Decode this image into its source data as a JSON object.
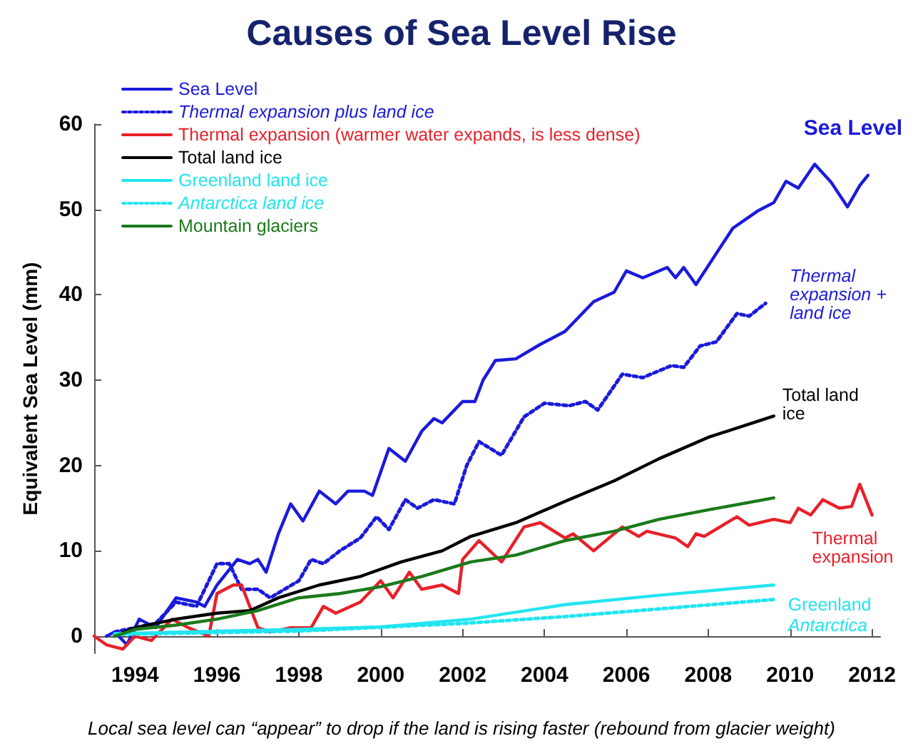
{
  "chart_data": {
    "type": "line",
    "title": "Causes of Sea Level Rise",
    "ylabel": "Equivalent Sea Level (mm)",
    "xlim": [
      1993,
      2012.2
    ],
    "xticks": [
      1994,
      1996,
      1998,
      2000,
      2002,
      2004,
      2006,
      2008,
      2010,
      2012
    ],
    "ylim": [
      -2,
      60
    ],
    "yticks": [
      0,
      10,
      20,
      30,
      40,
      50,
      60
    ],
    "grid": false,
    "legend": "top left",
    "marker": "none",
    "series": [
      {
        "name": "Sea Level",
        "color": "#1a1adb",
        "line_style": "solid",
        "x": [
          1993.3,
          1993.5,
          1993.8,
          1994.1,
          1994.5,
          1995,
          1995.5,
          1995.7,
          1996,
          1996.5,
          1996.8,
          1997,
          1997.2,
          1997.5,
          1997.8,
          1998.1,
          1998.5,
          1998.9,
          1999.2,
          1999.6,
          1999.8,
          2000.2,
          2000.6,
          2001,
          2001.3,
          2001.5,
          2002,
          2002.3,
          2002.5,
          2002.8,
          2003.3,
          2003.9,
          2004.5,
          2005.2,
          2005.7,
          2006,
          2006.4,
          2007,
          2007.2,
          2007.4,
          2007.7,
          2008.6,
          2009.2,
          2009.6,
          2009.9,
          2010.2,
          2010.6,
          2011,
          2011.4,
          2011.7,
          2011.9
        ],
        "values": [
          0,
          0.5,
          -1,
          2,
          1,
          4.5,
          4,
          3.5,
          6,
          9,
          8.5,
          9,
          7.5,
          12,
          15.5,
          13.5,
          17,
          15.5,
          17,
          17,
          16.5,
          22,
          20.5,
          24,
          25.5,
          25,
          27.5,
          27.5,
          30,
          32.3,
          32.5,
          34.2,
          35.7,
          39.2,
          40.3,
          42.8,
          42,
          43.2,
          42,
          43.2,
          41.2,
          47.8,
          49.8,
          50.8,
          53.3,
          52.5,
          55.3,
          53.2,
          50.3,
          52.8,
          54
        ]
      },
      {
        "name": "Thermal expansion plus land ice",
        "color": "#1a1adb",
        "line_style": "dotted",
        "x": [
          1993.5,
          1994,
          1994.5,
          1995,
          1995.5,
          1996,
          1996.3,
          1996.6,
          1997,
          1997.3,
          1998,
          1998.3,
          1998.6,
          1999,
          1999.5,
          1999.9,
          2000.2,
          2000.6,
          2000.9,
          2001.3,
          2001.8,
          2002.1,
          2002.4,
          2002.95,
          2003.5,
          2004,
          2004.6,
          2005,
          2005.3,
          2005.9,
          2006.4,
          2007.1,
          2007.4,
          2007.8,
          2008.2,
          2008.7,
          2009,
          2009.4
        ],
        "values": [
          0.5,
          1,
          1.5,
          4,
          3.5,
          8.5,
          8.5,
          5.5,
          5.5,
          4.5,
          6.5,
          9,
          8.5,
          10,
          11.5,
          14,
          12.5,
          16,
          15,
          16,
          15.5,
          20,
          22.8,
          21.2,
          25.7,
          27.3,
          27,
          27.5,
          26.5,
          30.7,
          30.3,
          31.7,
          31.5,
          34,
          34.5,
          37.8,
          37.5,
          39
        ]
      },
      {
        "name": "Thermal expansion (warmer water expands, is less dense)",
        "color": "#e8202a",
        "line_style": "solid",
        "x": [
          1993,
          1993.3,
          1993.7,
          1994,
          1994.4,
          1994.9,
          1995.3,
          1995.8,
          1996,
          1996.4,
          1996.6,
          1997,
          1997.3,
          1997.8,
          1998.3,
          1998.6,
          1998.9,
          1999.5,
          2000,
          2000.3,
          2000.7,
          2001,
          2001.5,
          2001.9,
          2002,
          2002.4,
          2002.95,
          2003.5,
          2003.9,
          2004.5,
          2004.7,
          2005.2,
          2005.9,
          2006.3,
          2006.5,
          2007.2,
          2007.5,
          2007.7,
          2007.9,
          2008.7,
          2009,
          2009.6,
          2010,
          2010.2,
          2010.5,
          2010.8,
          2011.2,
          2011.5,
          2011.7,
          2012
        ],
        "values": [
          0,
          -1,
          -1.5,
          0,
          -0.5,
          2,
          1,
          0,
          5,
          6,
          6,
          1,
          0.5,
          1,
          1,
          3.5,
          2.7,
          4,
          6.5,
          4.5,
          7.5,
          5.5,
          6,
          5,
          9,
          11.2,
          8.7,
          12.8,
          13.3,
          11.5,
          12,
          10,
          12.8,
          11.7,
          12.3,
          11.5,
          10.5,
          12,
          11.7,
          14,
          13,
          13.7,
          13.3,
          15,
          14.2,
          16,
          15,
          15.2,
          17.8,
          14.2
        ]
      },
      {
        "name": "Total land ice",
        "color": "#000000",
        "line_style": "solid",
        "x": [
          1993.5,
          1994,
          1995,
          1996,
          1996.8,
          1997.5,
          1998.5,
          1999.5,
          2000.5,
          2001.5,
          2002.2,
          2003.3,
          2004.5,
          2005.7,
          2006.8,
          2008,
          2009.6
        ],
        "values": [
          0,
          1,
          2,
          2.7,
          3,
          4.5,
          6,
          7,
          8.7,
          10,
          11.7,
          13.3,
          15.8,
          18.2,
          20.8,
          23.3,
          25.8
        ]
      },
      {
        "name": "Greenland land ice",
        "color": "#22e5f0",
        "line_style": "solid",
        "x": [
          1993.5,
          1996,
          1998,
          2000,
          2002.2,
          2004.5,
          2006.8,
          2009.6
        ],
        "values": [
          0.3,
          0.6,
          0.8,
          1.1,
          2,
          3.7,
          4.8,
          6
        ]
      },
      {
        "name": "Antarctica land ice",
        "color": "#22e5f0",
        "line_style": "dotted",
        "x": [
          1993.5,
          1998,
          2002,
          2004.5,
          2006.8,
          2009.6
        ],
        "values": [
          0.2,
          0.6,
          1.5,
          2.3,
          3.2,
          4.3
        ]
      },
      {
        "name": "Mountain glaciers",
        "color": "#1a7a1a",
        "line_style": "solid",
        "x": [
          1993.5,
          1994,
          1995,
          1996,
          1997,
          1998,
          1999,
          2000,
          2001,
          2002.2,
          2003.3,
          2004.5,
          2005.7,
          2006.8,
          2008,
          2009.6
        ],
        "values": [
          0,
          0.8,
          1.3,
          2,
          3,
          4.5,
          5,
          5.8,
          7,
          8.7,
          9.5,
          11.2,
          12.3,
          13.7,
          14.8,
          16.2
        ]
      }
    ],
    "annotations": [
      "Sea Level",
      "Thermal expansion + land ice",
      "Thermal expansion",
      "Total land ice",
      "Greenland",
      "Antarctica",
      "Local sea level can “appear” to drop if the land is rising faster (rebound from glacier weight)"
    ]
  }
}
